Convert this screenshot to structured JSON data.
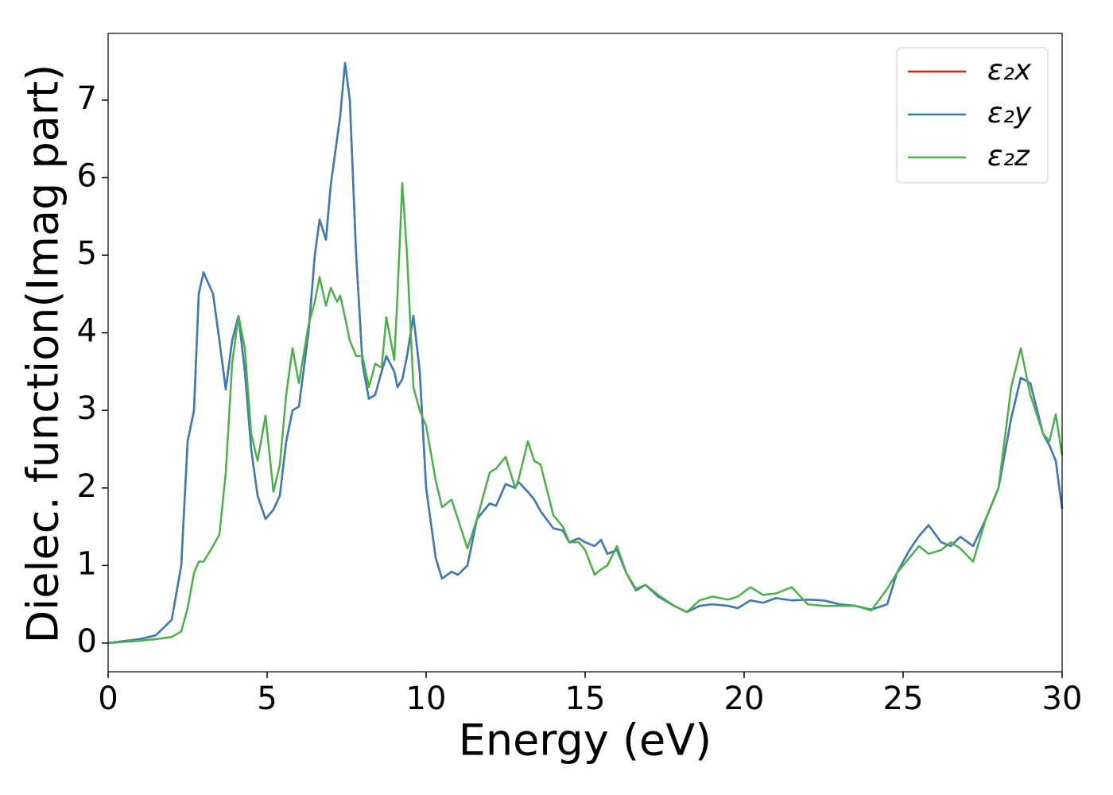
{
  "chart_data": {
    "type": "line",
    "xlabel": "Energy (eV)",
    "ylabel": "Dielec. function(Imag part)",
    "x": [
      0,
      1,
      1.5,
      2,
      2.3,
      2.5,
      2.7,
      2.85,
      3.0,
      3.3,
      3.5,
      3.7,
      3.9,
      4.1,
      4.3,
      4.5,
      4.7,
      4.95,
      5.2,
      5.4,
      5.6,
      5.8,
      6.0,
      6.3,
      6.5,
      6.65,
      6.85,
      7.0,
      7.2,
      7.3,
      7.45,
      7.6,
      7.8,
      8.0,
      8.2,
      8.4,
      8.6,
      8.75,
      9.0,
      9.1,
      9.25,
      9.4,
      9.6,
      9.8,
      10.0,
      10.3,
      10.5,
      10.8,
      11.0,
      11.3,
      11.6,
      12.0,
      12.2,
      12.5,
      12.8,
      12.9,
      13.2,
      13.4,
      13.6,
      14.0,
      14.3,
      14.5,
      14.8,
      15.0,
      15.3,
      15.5,
      15.7,
      16.0,
      16.3,
      16.6,
      16.9,
      17.3,
      17.8,
      18.2,
      18.6,
      19.0,
      19.5,
      19.8,
      20.2,
      20.6,
      21.0,
      21.5,
      22.0,
      22.5,
      23.0,
      23.5,
      24.0,
      24.5,
      24.8,
      25.2,
      25.5,
      25.8,
      26.2,
      26.5,
      26.8,
      27.2,
      27.6,
      28.0,
      28.4,
      28.7,
      29.0,
      29.4,
      29.6,
      29.8,
      30
    ],
    "series": [
      {
        "name": "ε₂x",
        "color": "#e41a1c",
        "values": [
          0,
          0.05,
          0.1,
          0.3,
          1.0,
          2.6,
          3.0,
          4.5,
          4.78,
          4.5,
          3.9,
          3.27,
          3.9,
          4.22,
          3.5,
          2.5,
          1.9,
          1.6,
          1.72,
          1.9,
          2.6,
          3.0,
          3.05,
          4.0,
          5.0,
          5.46,
          5.2,
          5.9,
          6.5,
          6.8,
          7.48,
          7.0,
          5.0,
          3.6,
          3.15,
          3.2,
          3.5,
          3.7,
          3.5,
          3.3,
          3.4,
          3.7,
          4.22,
          3.5,
          2.0,
          1.1,
          0.83,
          0.92,
          0.88,
          1.0,
          1.6,
          1.8,
          1.77,
          2.05,
          2.0,
          2.08,
          1.95,
          1.85,
          1.7,
          1.48,
          1.45,
          1.3,
          1.35,
          1.3,
          1.25,
          1.33,
          1.15,
          1.2,
          0.9,
          0.68,
          0.75,
          0.6,
          0.48,
          0.4,
          0.48,
          0.5,
          0.48,
          0.45,
          0.55,
          0.52,
          0.58,
          0.55,
          0.56,
          0.55,
          0.5,
          0.48,
          0.43,
          0.5,
          0.9,
          1.2,
          1.38,
          1.52,
          1.3,
          1.25,
          1.37,
          1.25,
          1.6,
          2.0,
          2.9,
          3.42,
          3.35,
          2.7,
          2.55,
          2.35,
          1.73
        ]
      },
      {
        "name": "ε₂y",
        "color": "#377eb8",
        "values": [
          0,
          0.05,
          0.1,
          0.3,
          1.0,
          2.6,
          3.0,
          4.5,
          4.78,
          4.5,
          3.9,
          3.27,
          3.9,
          4.22,
          3.5,
          2.5,
          1.9,
          1.6,
          1.72,
          1.9,
          2.6,
          3.0,
          3.05,
          4.0,
          5.0,
          5.46,
          5.2,
          5.9,
          6.5,
          6.8,
          7.48,
          7.0,
          5.0,
          3.6,
          3.15,
          3.2,
          3.5,
          3.7,
          3.5,
          3.3,
          3.4,
          3.7,
          4.22,
          3.5,
          2.0,
          1.1,
          0.83,
          0.92,
          0.88,
          1.0,
          1.6,
          1.8,
          1.77,
          2.05,
          2.0,
          2.08,
          1.95,
          1.85,
          1.7,
          1.48,
          1.45,
          1.3,
          1.35,
          1.3,
          1.25,
          1.33,
          1.15,
          1.2,
          0.9,
          0.68,
          0.75,
          0.6,
          0.48,
          0.4,
          0.48,
          0.5,
          0.48,
          0.45,
          0.55,
          0.52,
          0.58,
          0.55,
          0.56,
          0.55,
          0.5,
          0.48,
          0.43,
          0.5,
          0.9,
          1.2,
          1.38,
          1.52,
          1.3,
          1.25,
          1.37,
          1.25,
          1.6,
          2.0,
          2.9,
          3.42,
          3.35,
          2.7,
          2.55,
          2.35,
          1.73
        ]
      },
      {
        "name": "ε₂z",
        "color": "#4daf4a",
        "values": [
          0,
          0.03,
          0.05,
          0.08,
          0.15,
          0.45,
          0.9,
          1.05,
          1.05,
          1.25,
          1.4,
          2.2,
          3.6,
          4.22,
          3.8,
          2.7,
          2.35,
          2.93,
          1.95,
          2.3,
          3.2,
          3.8,
          3.35,
          4.1,
          4.4,
          4.72,
          4.35,
          4.58,
          4.4,
          4.48,
          4.2,
          3.9,
          3.7,
          3.7,
          3.3,
          3.6,
          3.55,
          4.2,
          3.65,
          4.5,
          5.93,
          5.0,
          3.3,
          3.0,
          2.8,
          2.1,
          1.75,
          1.85,
          1.6,
          1.22,
          1.6,
          2.2,
          2.25,
          2.4,
          2.0,
          2.1,
          2.6,
          2.35,
          2.3,
          1.65,
          1.5,
          1.3,
          1.3,
          1.2,
          0.88,
          0.95,
          1.0,
          1.25,
          0.9,
          0.7,
          0.75,
          0.62,
          0.48,
          0.4,
          0.55,
          0.6,
          0.56,
          0.6,
          0.72,
          0.62,
          0.64,
          0.72,
          0.5,
          0.48,
          0.48,
          0.48,
          0.42,
          0.7,
          0.9,
          1.1,
          1.25,
          1.15,
          1.2,
          1.3,
          1.22,
          1.05,
          1.6,
          2.0,
          3.3,
          3.8,
          3.2,
          2.7,
          2.6,
          2.95,
          2.42
        ]
      }
    ],
    "xlim": [
      0,
      30
    ],
    "xticks": [
      0,
      5,
      10,
      15,
      20,
      25,
      30
    ],
    "ylim": [
      -0.37,
      7.86
    ],
    "yticks": [
      0,
      1,
      2,
      3,
      4,
      5,
      6,
      7
    ],
    "legend": "upper right"
  }
}
